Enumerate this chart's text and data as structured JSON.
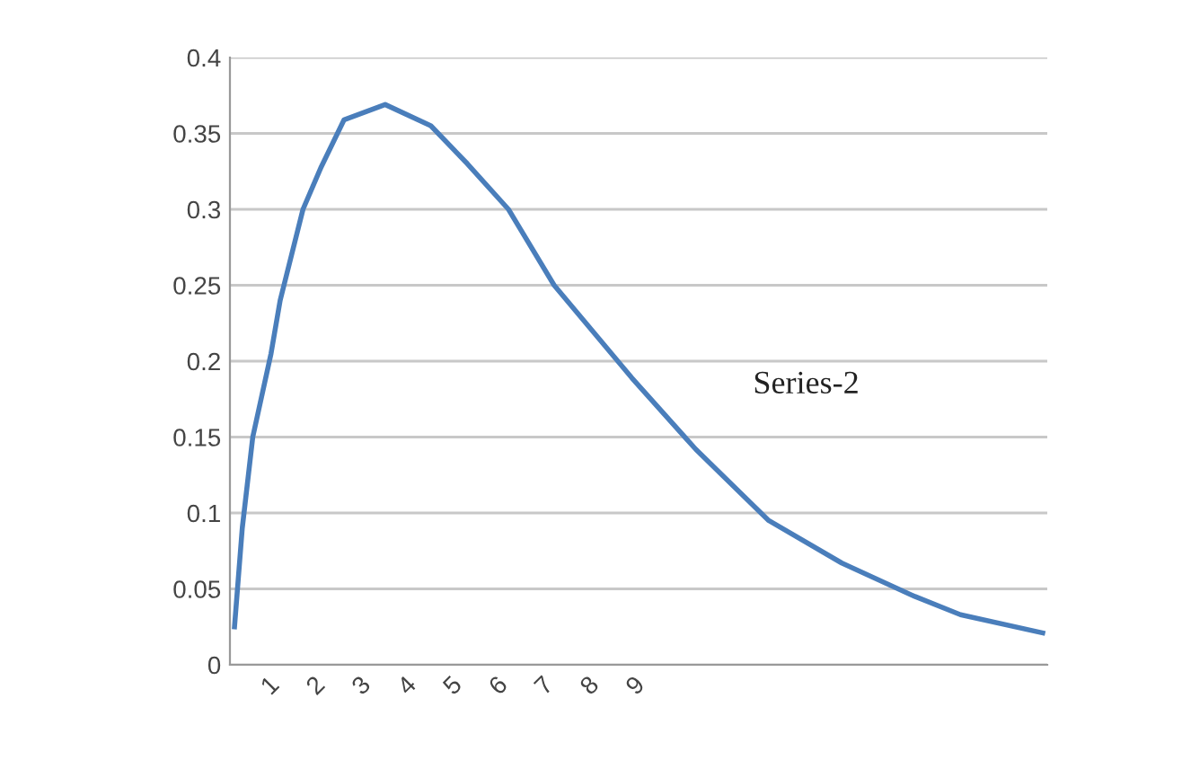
{
  "chart_data": {
    "type": "line",
    "series": [
      {
        "name": "Series-2",
        "color": "#4a7ebb",
        "x": [
          0.2,
          0.37,
          0.6,
          1.0,
          1.2,
          1.7,
          2.1,
          2.6,
          3.5,
          4.5,
          5.3,
          6.2,
          7.2,
          8.9,
          10.3,
          11.9,
          13.5,
          15.1,
          16.1,
          17.9
        ],
        "values": [
          0.025,
          0.09,
          0.15,
          0.205,
          0.24,
          0.3,
          0.328,
          0.359,
          0.369,
          0.355,
          0.33,
          0.3,
          0.25,
          0.189,
          0.142,
          0.095,
          0.067,
          0.045,
          0.033,
          0.021
        ]
      }
    ],
    "xlim": [
      0.1,
      18
    ],
    "xticks": [
      1,
      2,
      3,
      4,
      5,
      6,
      7,
      8,
      9
    ],
    "ylim": [
      0,
      0.4
    ],
    "yticks": [
      0,
      0.05,
      0.1,
      0.15,
      0.2,
      0.25,
      0.3,
      0.35,
      0.4
    ],
    "grid": "y",
    "marker": "none",
    "line_style": "solid",
    "legend": false
  }
}
